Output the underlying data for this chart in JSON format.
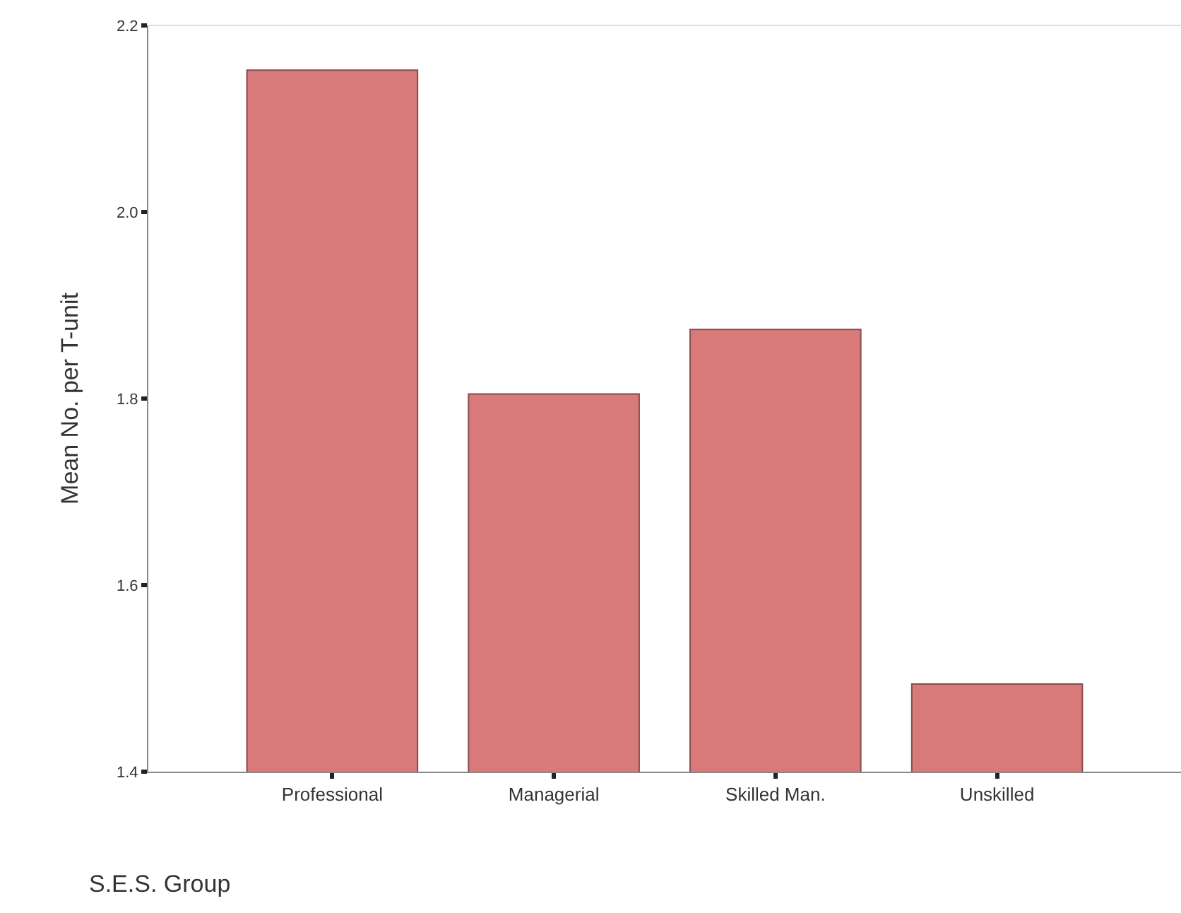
{
  "chart_data": {
    "type": "bar",
    "xlabel": "S.E.S. Group",
    "ylabel": "Mean No. per T-unit",
    "categories": [
      "Professional",
      "Managerial",
      "Skilled Man.",
      "Unskilled"
    ],
    "values": [
      2.152,
      1.805,
      1.874,
      1.494
    ],
    "color": "#d97a7a",
    "ylim": [
      1.4,
      2.2
    ],
    "yticks": [
      1.4,
      1.6,
      1.8,
      {
        "value": 2.0,
        "label": "2.0"
      },
      2.2
    ]
  }
}
